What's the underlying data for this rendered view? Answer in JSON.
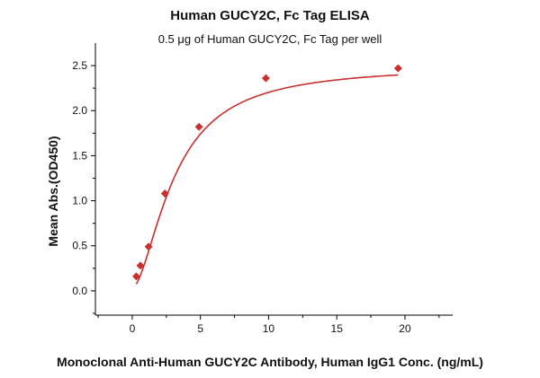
{
  "chart_data": {
    "type": "scatter",
    "title": "Human GUCY2C, Fc Tag ELISA",
    "subtitle": "0.5 μg of Human GUCY2C, Fc Tag per well",
    "xlabel": "Monoclonal Anti-Human GUCY2C Antibody, Human IgG1 Conc. (ng/mL)",
    "ylabel": "Mean Abs.(OD450)",
    "xlim": [
      -2.7,
      23.5
    ],
    "ylim": [
      -0.27,
      2.75
    ],
    "xticks": [
      0,
      5,
      10,
      15,
      20
    ],
    "yticks": [
      0.0,
      0.5,
      1.0,
      1.5,
      2.0,
      2.5
    ],
    "xtick_labels": [
      "0",
      "5",
      "10",
      "15",
      "20"
    ],
    "ytick_labels": [
      "0.0",
      "0.5",
      "1.0",
      "1.5",
      "2.0",
      "2.5"
    ],
    "grid": false,
    "marker_color": "#c8302e",
    "curve_color": "#c8302e",
    "series": [
      {
        "x": [
          0.3,
          0.6,
          1.2,
          2.4,
          4.9,
          9.8,
          19.5
        ],
        "y": [
          0.16,
          0.28,
          0.49,
          1.08,
          1.82,
          2.36,
          2.47
        ],
        "fit_curve": true
      }
    ]
  }
}
